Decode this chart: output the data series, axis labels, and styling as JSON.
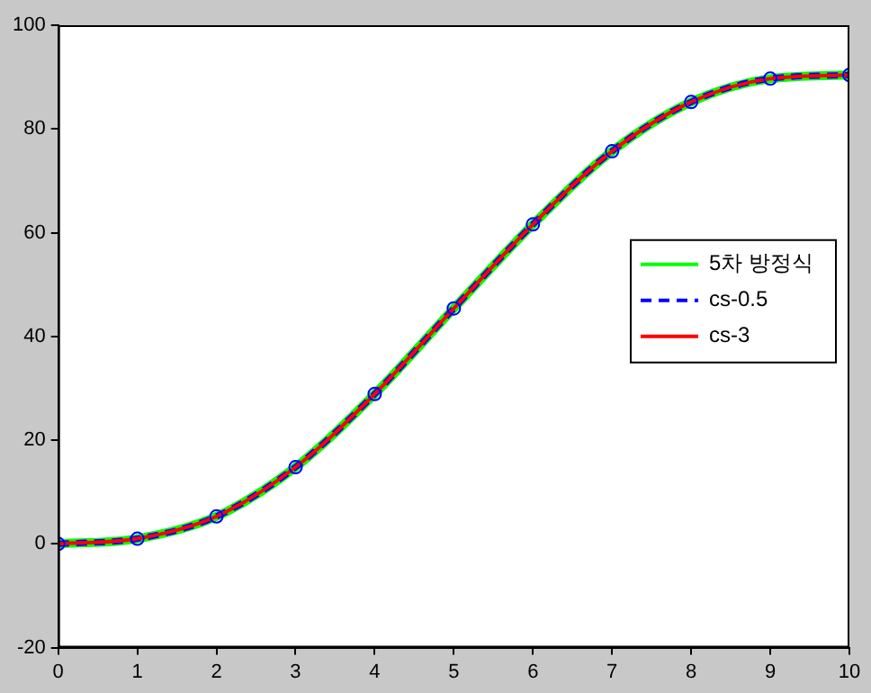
{
  "chart_data": {
    "type": "line",
    "x": [
      0,
      1,
      2,
      3,
      4,
      5,
      6,
      7,
      8,
      9,
      10
    ],
    "xlim": [
      0,
      10
    ],
    "xticks": [
      0,
      1,
      2,
      3,
      4,
      5,
      6,
      7,
      8,
      9,
      10
    ],
    "ylim": [
      -20,
      100
    ],
    "yticks": [
      -20,
      0,
      20,
      40,
      60,
      80,
      100
    ],
    "grid": false,
    "legend": "right",
    "series": [
      {
        "name": "5차 방정식",
        "color": "#00ff00",
        "values": [
          0,
          1,
          5.3,
          14.8,
          28.9,
          45.4,
          61.6,
          75.7,
          85.2,
          89.7,
          90.4
        ]
      },
      {
        "name": "cs-0.5",
        "color": "#0000ff",
        "line_style": "dashed",
        "values": [
          0,
          1,
          5.3,
          14.8,
          28.9,
          45.4,
          61.6,
          75.7,
          85.2,
          89.7,
          90.4
        ]
      },
      {
        "name": "cs-3",
        "color": "#ff0000",
        "values": [
          0,
          1,
          5.3,
          14.8,
          28.9,
          45.4,
          61.6,
          75.7,
          85.2,
          89.7,
          90.4
        ]
      },
      {
        "type": "scatter",
        "marker": "circle",
        "color": "#0000ff",
        "values": [
          0,
          1,
          5.3,
          14.8,
          28.9,
          45.4,
          61.6,
          75.7,
          85.2,
          89.7,
          90.4
        ]
      }
    ]
  }
}
